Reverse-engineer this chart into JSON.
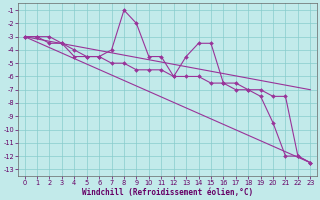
{
  "xlabel": "Windchill (Refroidissement éolien,°C)",
  "bg_color": "#c2eaea",
  "grid_color": "#a0d8d8",
  "line_color": "#993399",
  "x_data": [
    0,
    1,
    2,
    3,
    4,
    5,
    6,
    7,
    8,
    9,
    10,
    11,
    12,
    13,
    14,
    15,
    16,
    17,
    18,
    19,
    20,
    21,
    22,
    23
  ],
  "y_jagged": [
    -3,
    -3,
    -3.5,
    -3.5,
    -4.5,
    -4.5,
    -4.5,
    -4,
    -1,
    -2,
    -4.5,
    -4.5,
    -6,
    -4.5,
    -3.5,
    -3.5,
    -6.5,
    -6.5,
    -7,
    -7.5,
    -9.5,
    -12,
    -12,
    -12.5
  ],
  "y_smooth": [
    -3,
    -3,
    -3,
    -3.5,
    -4,
    -4.5,
    -4.5,
    -5,
    -5,
    -5.5,
    -5.5,
    -5.5,
    -6,
    -6,
    -6,
    -6.5,
    -6.5,
    -7,
    -7,
    -7,
    -7.5,
    -7.5,
    -12,
    -12.5
  ],
  "trend1_x": [
    0,
    23
  ],
  "trend1_y": [
    -3.0,
    -12.5
  ],
  "trend2_x": [
    0,
    23
  ],
  "trend2_y": [
    -3.0,
    -7.0
  ],
  "ylim": [
    -13.5,
    -0.5
  ],
  "xlim": [
    -0.5,
    23.5
  ],
  "yticks": [
    -1,
    -2,
    -3,
    -4,
    -5,
    -6,
    -7,
    -8,
    -9,
    -10,
    -11,
    -12,
    -13
  ],
  "xticks": [
    0,
    1,
    2,
    3,
    4,
    5,
    6,
    7,
    8,
    9,
    10,
    11,
    12,
    13,
    14,
    15,
    16,
    17,
    18,
    19,
    20,
    21,
    22,
    23
  ]
}
